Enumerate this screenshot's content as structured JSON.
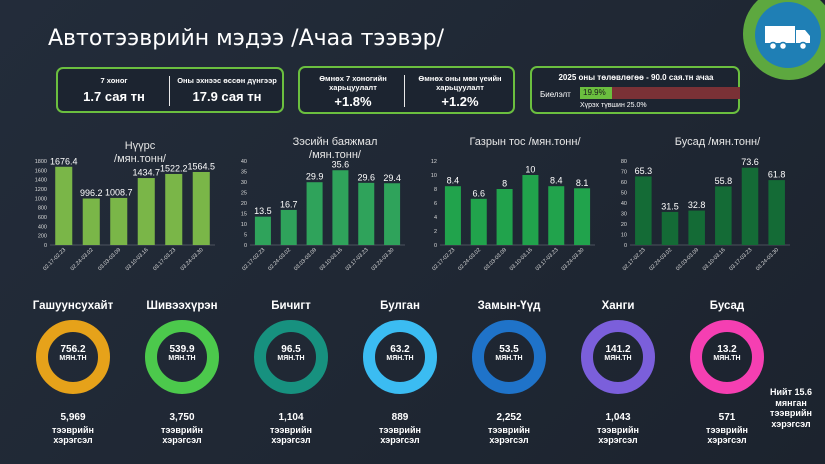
{
  "title": "Автотээврийн мэдээ /Ачаа тээвэр/",
  "summary1": {
    "week_label": "7 хоног",
    "week_value": "1.7 сая тн",
    "ytd_label": "Оны эхнээс өссөн дүнгээр",
    "ytd_value": "17.9 сая тн"
  },
  "summary2": {
    "wow_label": "Өмнөх 7 хоногийн харьцуулалт",
    "wow_value": "+1.8%",
    "yoy_label": "Өмнөх оны мөн үеийн харьцуулалт",
    "yoy_value": "+1.2%"
  },
  "plan": {
    "title": "2025 оны төлөвлөгөө - 90.0 сая.тн ачаа",
    "label": "Биелэлт",
    "percent": "19.9%",
    "progress": 0.199,
    "remaining": "Хүрэх түвшин 25.0%",
    "colors": {
      "done": "#6bbf3f",
      "remaining": "#7a3136"
    }
  },
  "chart_data": [
    {
      "type": "bar",
      "title": "Нүүрс\n/мян.тонн/",
      "categories": [
        "02.17-02.23",
        "02.24-03.02",
        "03.03-03.09",
        "03.10-03.16",
        "03.17-03.23",
        "03.24-03.30"
      ],
      "values": [
        1676.4,
        996.2,
        1008.7,
        1434.7,
        1522.2,
        1564.5
      ],
      "labels": [
        "1676.4",
        "996.2",
        "1008.7",
        "1434.7",
        "1522.2",
        "1564.5"
      ],
      "ylim": [
        0,
        1800
      ],
      "yticks": [
        0,
        200,
        400,
        600,
        800,
        1000,
        1200,
        1400,
        1600,
        1800
      ],
      "color": "#7ab648"
    },
    {
      "type": "bar",
      "title": "Зэсийн баяжмал\n/мян.тонн/",
      "categories": [
        "02.17-02.23",
        "02.24-03.02",
        "03.03-03.09",
        "03.10-03.16",
        "03.17-03.23",
        "03.24-03.30"
      ],
      "values": [
        13.5,
        16.7,
        29.9,
        35.6,
        29.6,
        29.4
      ],
      "labels": [
        "13.5",
        "16.7",
        "29.9",
        "35.6",
        "29.6",
        "29.4"
      ],
      "ylim": [
        0,
        40
      ],
      "yticks": [
        0,
        5,
        10,
        15,
        20,
        25,
        30,
        35,
        40
      ],
      "color": "#2fa35b"
    },
    {
      "type": "bar",
      "title": "Газрын тос /мян.тонн/",
      "categories": [
        "02.17-02.23",
        "02.24-03.02",
        "03.03-03.09",
        "03.10-03.16",
        "03.17-03.23",
        "03.24-03.30"
      ],
      "values": [
        8.4,
        6.6,
        8,
        10,
        8.4,
        8.1
      ],
      "labels": [
        "8.4",
        "6.6",
        "8",
        "10",
        "8.4",
        "8.1"
      ],
      "ylim": [
        0,
        12
      ],
      "yticks": [
        0,
        2,
        4,
        6,
        8,
        10,
        12
      ],
      "color": "#21a34c"
    },
    {
      "type": "bar",
      "title": "Бусад /мян.тонн/",
      "categories": [
        "02.17-02.23",
        "02.24-03.02",
        "03.03-03.09",
        "03.10-03.16",
        "03.17-03.23",
        "03.24-03.30"
      ],
      "values": [
        65.3,
        31.5,
        32.8,
        55.8,
        73.6,
        61.8
      ],
      "labels": [
        "65.3",
        "31.5",
        "32.8",
        "55.8",
        "73.6",
        "61.8"
      ],
      "ylim": [
        0,
        80
      ],
      "yticks": [
        0,
        10,
        20,
        30,
        40,
        50,
        60,
        70,
        80
      ],
      "color": "#146b36"
    }
  ],
  "regions": [
    {
      "name": "Гашуунсухайт",
      "value": "756.2",
      "unit": "МЯН.ТН",
      "count": "5,969",
      "desc": "тээврийн хэрэгсэл",
      "color": "#e6a21a"
    },
    {
      "name": "Шивээхүрэн",
      "value": "539.9",
      "unit": "МЯН.ТН",
      "count": "3,750",
      "desc": "тээврийн хэрэгсэл",
      "color": "#4cc94c"
    },
    {
      "name": "Бичигт",
      "value": "96.5",
      "unit": "МЯН.ТН",
      "count": "1,104",
      "desc": "тээврийн хэрэгсэл",
      "color": "#17917f"
    },
    {
      "name": "Булган",
      "value": "63.2",
      "unit": "МЯН.ТН",
      "count": "889",
      "desc": "тээврийн хэрэгсэл",
      "color": "#3bbcf2"
    },
    {
      "name": "Замын-Үүд",
      "value": "53.5",
      "unit": "МЯН.ТН",
      "count": "2,252",
      "desc": "тээврийн хэрэгсэл",
      "color": "#1f73c9"
    },
    {
      "name": "Ханги",
      "value": "141.2",
      "unit": "МЯН.ТН",
      "count": "1,043",
      "desc": "тээврийн хэрэгсэл",
      "color": "#7b5fdb"
    },
    {
      "name": "Бусад",
      "value": "13.2",
      "unit": "МЯН.ТН",
      "count": "571",
      "desc": "тээврийн хэрэгсэл",
      "color": "#f53fb2"
    }
  ],
  "total": "Нийт 15.6 мянган тээврийн хэрэгсэл",
  "icons": {
    "logo": "truck-icon"
  }
}
